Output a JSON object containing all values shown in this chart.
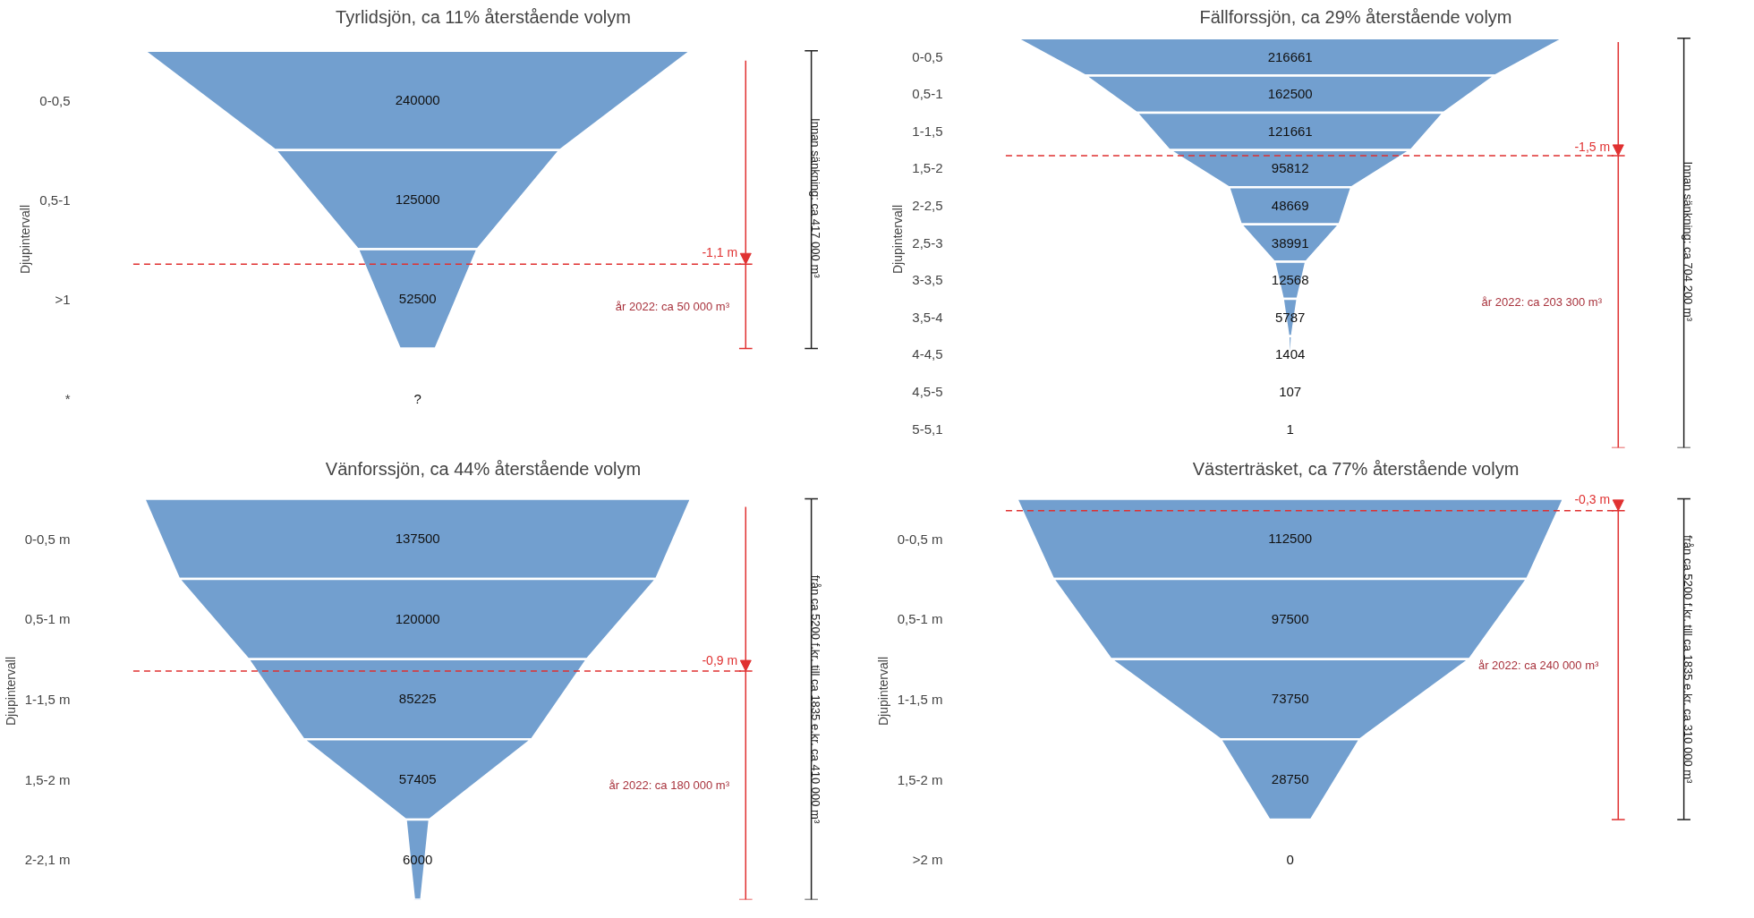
{
  "chart_data": [
    {
      "type": "other",
      "title": "Tyrlidsjön, ca 11% återstående volym",
      "ylabel": "Djupintervall",
      "categories": [
        "0-0,5",
        "0,5-1",
        ">1",
        "*"
      ],
      "values": [
        240000,
        125000,
        52500,
        null
      ],
      "value_labels": [
        "240000",
        "125000",
        "52500",
        "?"
      ],
      "color": "#729fcf",
      "annotations": [
        {
          "text": "-1,1 m",
          "y": ">1"
        },
        "år 2022: ca 50 000 m³",
        "Innan sänkning:  ca 417 000 m³"
      ]
    },
    {
      "type": "other",
      "title": "Fällforssjön, ca 29% återstående volym",
      "ylabel": "Djupintervall",
      "categories": [
        "0-0,5",
        "0,5-1",
        "1-1,5",
        "1,5-2",
        "2-2,5",
        "2,5-3",
        "3-3,5",
        "3,5-4",
        "4-4,5",
        "4,5-5",
        "5-5,1"
      ],
      "values": [
        216661,
        162500,
        121661,
        95812,
        48669,
        38991,
        12568,
        5787,
        1404,
        107,
        1
      ],
      "data_labels": true,
      "color": "#729fcf",
      "annotations": [
        {
          "text": "-1,5 m",
          "y": "1,5-2"
        },
        "år 2022: ca 203 300 m³",
        "Innan sänkning:  ca 704 200 m³"
      ]
    },
    {
      "type": "other",
      "title": "Vänforssjön, ca 44% återstående volym",
      "ylabel": "Djupintervall",
      "categories": [
        "0-0,5 m",
        "0,5-1 m",
        "1-1,5 m",
        "1,5-2 m",
        "2-2,1 m"
      ],
      "values": [
        137500,
        120000,
        85225,
        57405,
        6000
      ],
      "data_labels": true,
      "color": "#729fcf",
      "annotations": [
        {
          "text": "-0,9 m",
          "y": "1-1,5 m"
        },
        "år 2022: ca 180 000 m³",
        "från ca 5200 f.kr. till ca 1835 e.kr. ca 410 000 m³"
      ]
    },
    {
      "type": "other",
      "title": "Västerträsket, ca 77% återstående volym",
      "ylabel": "Djupintervall",
      "categories": [
        "0-0,5 m",
        "0,5-1 m",
        "1-1,5 m",
        "1,5-2 m",
        ">2 m"
      ],
      "values": [
        112500,
        97500,
        73750,
        28750,
        0
      ],
      "data_labels": true,
      "color": "#729fcf",
      "annotations": [
        {
          "text": "-0,3 m",
          "y": "0-0,5 m"
        },
        "år 2022:  ca 240 000 m³",
        "från ca 5200 f.kr. till ca 1835 e.kr. ca 310 000 m³"
      ]
    }
  ]
}
